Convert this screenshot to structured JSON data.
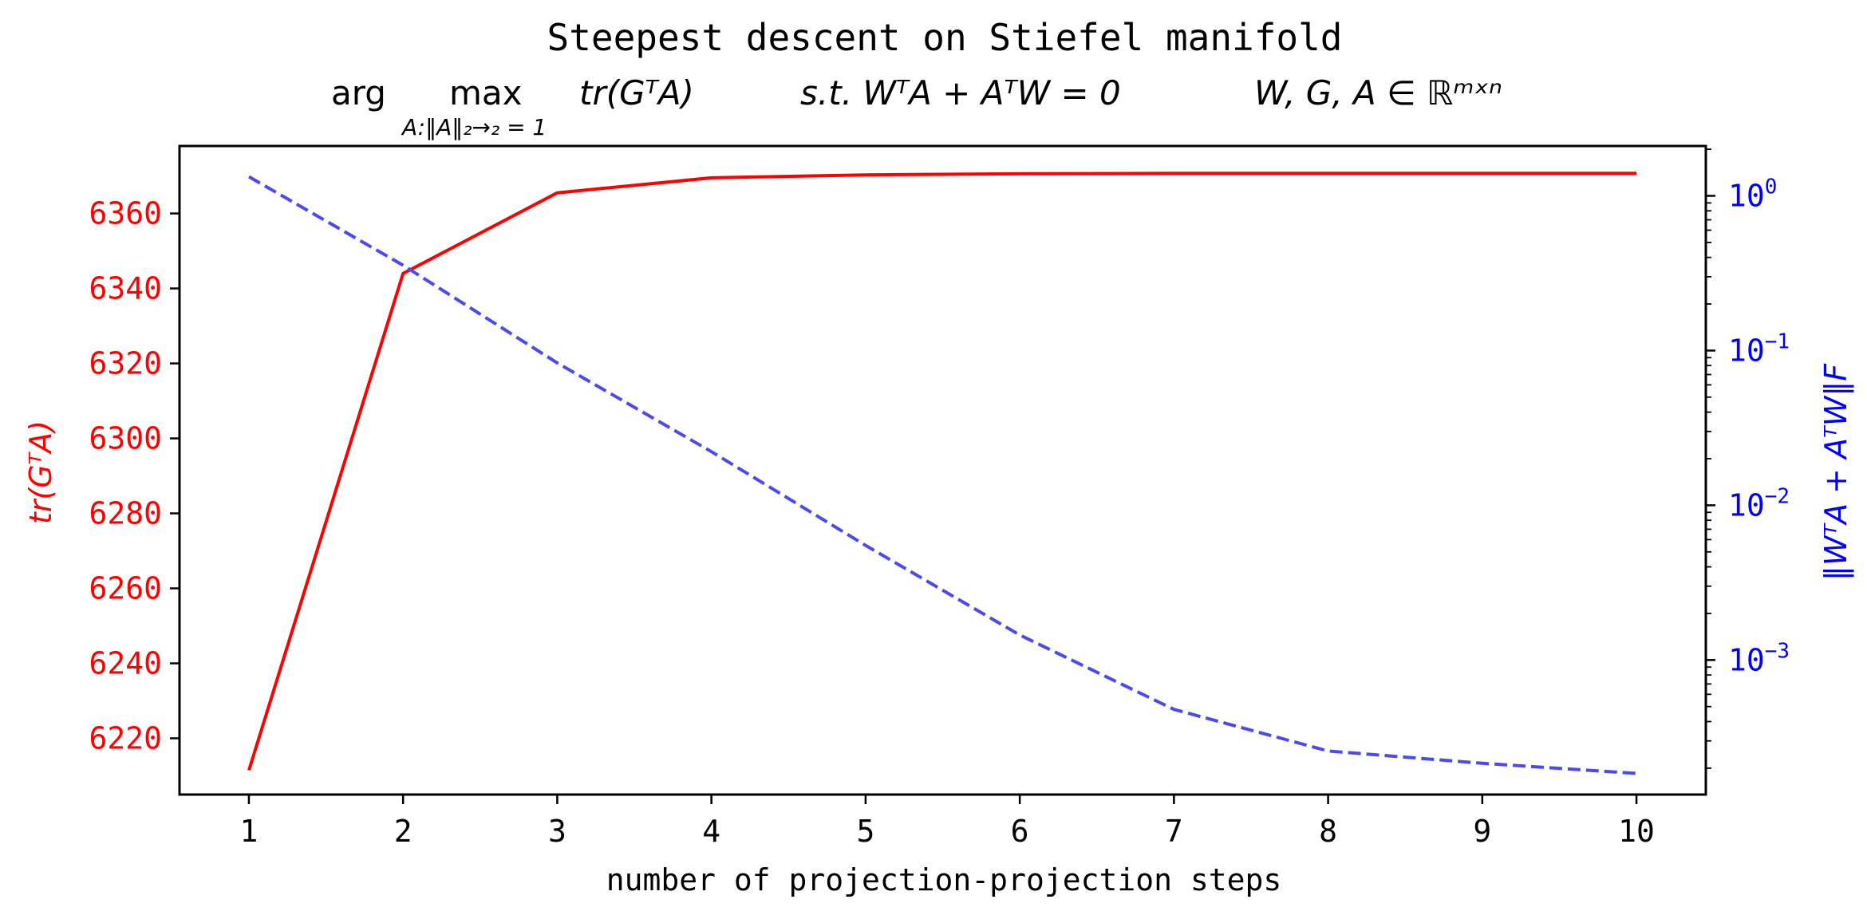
{
  "chart_data": {
    "type": "line",
    "title": "Steepest descent on Stiefel manifold",
    "subtitle": {
      "part1": "arg",
      "part2": "max",
      "part2_sub": "A:‖A‖₂→₂ = 1",
      "part3": "tr(GᵀA)",
      "part4": "s.t. WᵀA + AᵀW = 0",
      "part5": "W, G, A ∈ ℝᵐˣⁿ"
    },
    "xlabel": "number of projection-projection steps",
    "ylabel_left": "tr(GᵀA)",
    "ylabel_right": "‖WᵀA + AᵀW‖F",
    "x": [
      1,
      2,
      3,
      4,
      5,
      6,
      7,
      8,
      9,
      10
    ],
    "xticks": [
      "1",
      "2",
      "3",
      "4",
      "5",
      "6",
      "7",
      "8",
      "9",
      "10"
    ],
    "xlim": [
      0.55,
      10.45
    ],
    "left_axis": {
      "ylim": [
        6205,
        6378
      ],
      "ticks": [
        6220,
        6240,
        6260,
        6280,
        6300,
        6320,
        6340,
        6360
      ],
      "tick_labels": [
        "6220",
        "6240",
        "6260",
        "6280",
        "6300",
        "6320",
        "6340",
        "6360"
      ]
    },
    "right_axis": {
      "scale": "log",
      "ylim": [
        0.000135,
        2.1
      ],
      "major_ticks": [
        0.001,
        0.01,
        0.1,
        1
      ],
      "major_tick_labels": [
        {
          "base": "10",
          "exp": "−3"
        },
        {
          "base": "10",
          "exp": "−2"
        },
        {
          "base": "10",
          "exp": "−1"
        },
        {
          "base": "10",
          "exp": "0"
        }
      ]
    },
    "series": [
      {
        "axis": "left",
        "style": "solid",
        "color": "#ff0000",
        "values": [
          6211.5,
          6344.0,
          6365.5,
          6369.5,
          6370.3,
          6370.6,
          6370.7,
          6370.7,
          6370.7,
          6370.7
        ]
      },
      {
        "axis": "right",
        "style": "dashed",
        "color": "#4a4af0",
        "values": [
          1.33,
          0.356,
          0.0832,
          0.0222,
          0.0055,
          0.00145,
          0.00048,
          0.000258,
          0.000215,
          0.000185
        ]
      }
    ],
    "colors": {
      "left_axis_text": "#ff0000",
      "right_axis_text": "#0000ff",
      "axis_line": "#000000"
    },
    "grid": false
  }
}
